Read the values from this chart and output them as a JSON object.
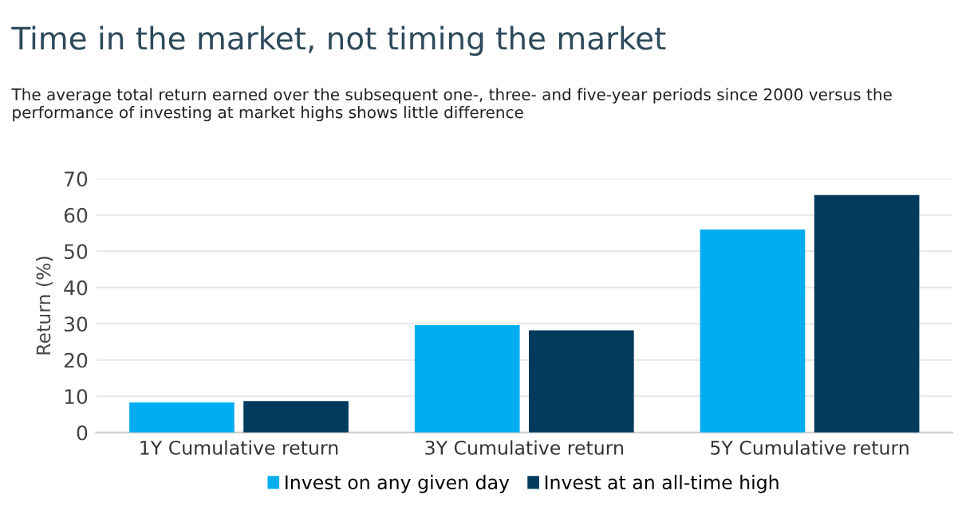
{
  "chart_data": {
    "type": "bar",
    "title": "Time in the market, not timing the market",
    "subtitle": "The average total return earned over the subsequent one-, three- and five-year periods since 2000 versus the performance of investing at market highs shows little difference",
    "ylabel": "Return (%)",
    "categories": [
      "1Y Cumulative return",
      "3Y Cumulative return",
      "5Y Cumulative return"
    ],
    "series": [
      {
        "name": "Invest on any given day",
        "color": "#00aeef",
        "values": [
          8.3,
          29.6,
          56
        ]
      },
      {
        "name": "Invest at an all-time high",
        "color": "#003a5d",
        "values": [
          8.7,
          28.2,
          65.5
        ]
      }
    ],
    "ylim": [
      0,
      70
    ],
    "yticks": [
      0,
      10,
      20,
      30,
      40,
      50,
      60,
      70
    ],
    "grid": "y",
    "legend": "bottom"
  }
}
